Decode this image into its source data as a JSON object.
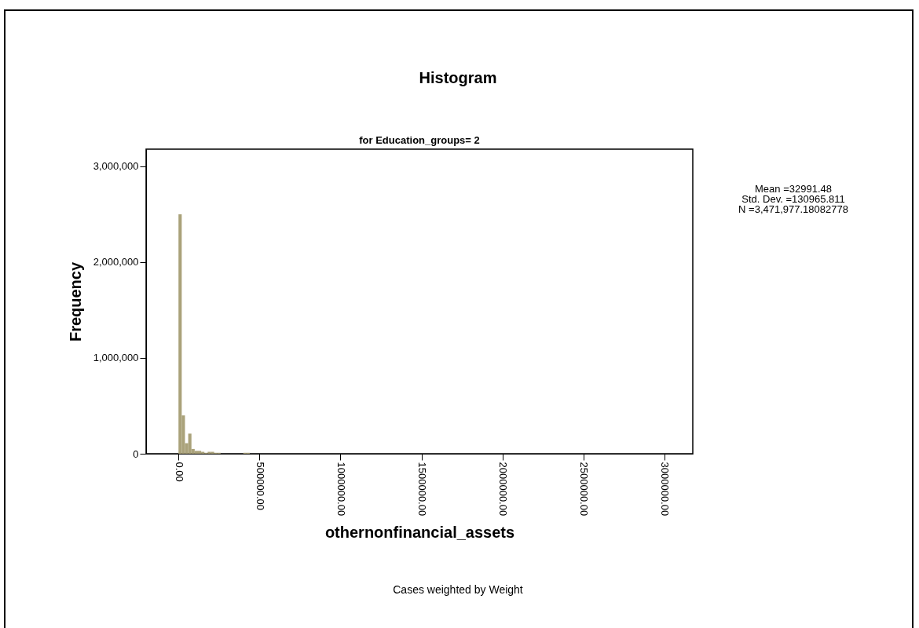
{
  "chart_data": {
    "type": "histogram",
    "title": "Histogram",
    "subtitle": "for Education_groups= 2",
    "xlabel": "othernonfinancial_assets",
    "ylabel": "Frequency",
    "bins": [
      0,
      20000,
      40000,
      60000,
      80000,
      100000,
      120000,
      140000,
      160000,
      180000,
      200000,
      220000,
      240000,
      260000,
      280000,
      300000,
      320000,
      340000,
      360000,
      380000,
      400000,
      420000,
      440000
    ],
    "values": [
      2500000,
      400000,
      110000,
      210000,
      50000,
      30000,
      30000,
      20000,
      10000,
      20000,
      20000,
      10000,
      10000,
      0,
      0,
      0,
      0,
      0,
      0,
      0,
      10000,
      10000
    ],
    "color": "#aaa27a",
    "xlim": [
      -200000,
      3175000
    ],
    "xticks": [
      {
        "value": 0,
        "label": "0.00"
      },
      {
        "value": 500000,
        "label": "500000.00"
      },
      {
        "value": 1000000,
        "label": "1000000.00"
      },
      {
        "value": 1500000,
        "label": "1500000.00"
      },
      {
        "value": 2000000,
        "label": "2000000.00"
      },
      {
        "value": 2500000,
        "label": "2500000.00"
      },
      {
        "value": 3000000,
        "label": "3000000.00"
      }
    ],
    "ylim": [
      0,
      3180000
    ],
    "yticks": [
      {
        "value": 0,
        "label": "0"
      },
      {
        "value": 1000000,
        "label": "1,000,000"
      },
      {
        "value": 2000000,
        "label": "2,000,000"
      },
      {
        "value": 3000000,
        "label": "3,000,000"
      }
    ],
    "grid": false,
    "annotations": [
      "Mean =32991.48\nStd. Dev. =130965.811\nN =3,471,977.18082778",
      "Cases weighted by Weight"
    ]
  }
}
